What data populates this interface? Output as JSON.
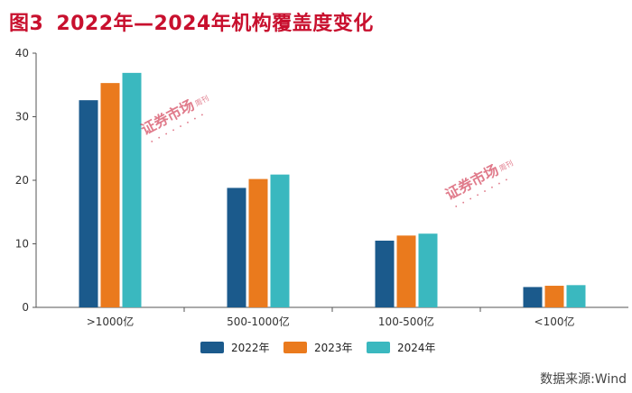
{
  "title": {
    "figure_no": "图3",
    "text": "2022年—2024年机构覆盖度变化"
  },
  "source": "数据来源:Wind",
  "watermark": {
    "text": "证券市场",
    "sub": "周刊",
    "color": "#c8102e"
  },
  "colors": {
    "title": "#c8102e",
    "axis": "#555555",
    "grid": "#dddddd"
  },
  "chart_data": {
    "type": "bar",
    "title": "2022年—2024年机构覆盖度变化",
    "categories": [
      ">1000亿",
      "500-1000亿",
      "100-500亿",
      "<100亿"
    ],
    "series": [
      {
        "name": "2022年",
        "color": "#1b5a8c",
        "values": [
          32.6,
          18.8,
          10.5,
          3.2
        ]
      },
      {
        "name": "2023年",
        "color": "#ea7a1d",
        "values": [
          35.3,
          20.2,
          11.3,
          3.4
        ]
      },
      {
        "name": "2024年",
        "color": "#3ab8bf",
        "values": [
          36.9,
          20.9,
          11.6,
          3.5
        ]
      }
    ],
    "ylim": [
      0,
      40
    ],
    "yticks": [
      0,
      10,
      20,
      30,
      40
    ],
    "xlabel": "",
    "ylabel": "",
    "legend": "bottom-center",
    "grid": false
  }
}
